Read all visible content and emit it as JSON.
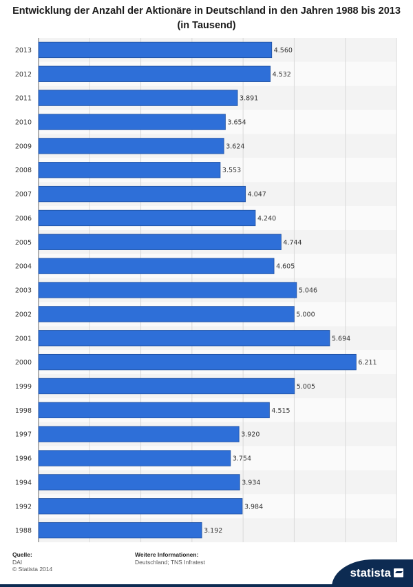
{
  "chart_data": {
    "type": "bar",
    "orientation": "horizontal",
    "title": "Entwicklung der Anzahl der Aktionäre in Deutschland in den Jahren 1988 bis 2013 (in Tausend)",
    "categories": [
      "2013",
      "2012",
      "2011",
      "2010",
      "2009",
      "2008",
      "2007",
      "2006",
      "2005",
      "2004",
      "2003",
      "2002",
      "2001",
      "2000",
      "1999",
      "1998",
      "1997",
      "1996",
      "1994",
      "1992",
      "1988"
    ],
    "values": [
      4560,
      4532,
      3891,
      3654,
      3624,
      3553,
      4047,
      4240,
      4744,
      4605,
      5046,
      5000,
      5694,
      6211,
      5005,
      4515,
      3920,
      3754,
      3934,
      3984,
      3192
    ],
    "value_labels": [
      "4.560",
      "4.532",
      "3.891",
      "3.654",
      "3.624",
      "3.553",
      "4.047",
      "4.240",
      "4.744",
      "4.605",
      "5.046",
      "5.000",
      "5.694",
      "6.211",
      "5.005",
      "4.515",
      "3.920",
      "3.754",
      "3.934",
      "3.984",
      "3.192"
    ],
    "xlim": [
      0,
      7000
    ],
    "grid": true,
    "bar_color": "#2e6fd8",
    "xlabel": "",
    "ylabel": ""
  },
  "footer": {
    "source_label": "Quelle:",
    "source": "DAI",
    "copyright": "© Statista 2014",
    "info_label": "Weitere Informationen:",
    "info": "Deutschland; TNS Infratest"
  },
  "brand": {
    "name": "statista"
  }
}
